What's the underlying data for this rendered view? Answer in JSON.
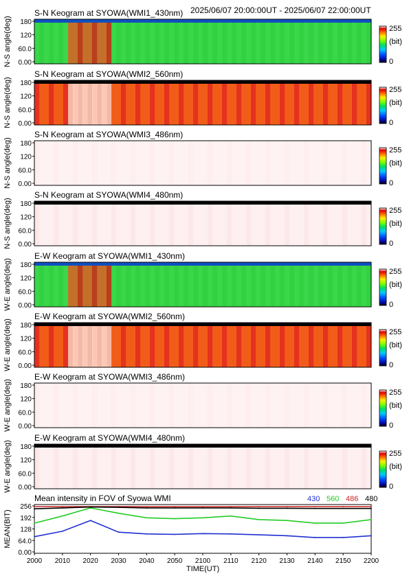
{
  "header": {
    "time_range": "2025/06/07 20:00:00UT - 2025/06/07 22:00:00UT"
  },
  "colorbar": {
    "max_label": "255",
    "unit_label": "(bit)",
    "min_label": "0"
  },
  "panels": [
    {
      "title": "S-N Keogram at SYOWA(WMI1_430nm)",
      "ylabel": "N-S angle(deg)",
      "profile": "p430"
    },
    {
      "title": "S-N Keogram at SYOWA(WMI2_560nm)",
      "ylabel": "N-S angle(deg)",
      "profile": "p560"
    },
    {
      "title": "S-N Keogram at SYOWA(WMI3_486nm)",
      "ylabel": "N-S angle(deg)",
      "profile": "p486"
    },
    {
      "title": "S-N Keogram at SYOWA(WMI4_480nm)",
      "ylabel": "N-S angle(deg)",
      "profile": "p480"
    },
    {
      "title": "E-W Keogram at SYOWA(WMI1_430nm)",
      "ylabel": "W-E angle(deg)",
      "profile": "p430"
    },
    {
      "title": "E-W Keogram at SYOWA(WMI2_560nm)",
      "ylabel": "W-E angle(deg)",
      "profile": "p560"
    },
    {
      "title": "E-W Keogram at SYOWA(WMI3_486nm)",
      "ylabel": "W-E angle(deg)",
      "profile": "p486"
    },
    {
      "title": "E-W Keogram at SYOWA(WMI4_480nm)",
      "ylabel": "W-E angle(deg)",
      "profile": "p480"
    }
  ],
  "keogram_yticks": [
    "180",
    "120",
    "60.0",
    "0.00"
  ],
  "line_panel": {
    "title": "Mean intensity in FOV of Syowa WMI",
    "ylabel": "MEAN(BIT)",
    "xlabel": "TIME(UT)",
    "yticks": [
      "256",
      "192",
      "128",
      "64.0",
      "0.00"
    ],
    "legend": [
      {
        "label": "430",
        "color": "#1f2fd0"
      },
      {
        "label": "560",
        "color": "#22cc22"
      },
      {
        "label": "486",
        "color": "#cc2222"
      },
      {
        "label": "480",
        "color": "#000000"
      }
    ]
  },
  "chart_data": {
    "type": "line",
    "title": "Mean intensity in FOV of Syowa WMI",
    "xlabel": "TIME(UT)",
    "ylabel": "MEAN(BIT)",
    "x": [
      "2000",
      "2010",
      "2020",
      "2030",
      "2040",
      "2050",
      "2100",
      "2110",
      "2120",
      "2130",
      "2140",
      "2150",
      "2200"
    ],
    "x_minutes": [
      0,
      10,
      20,
      30,
      40,
      50,
      60,
      70,
      80,
      90,
      100,
      110,
      120
    ],
    "ylim": [
      0,
      256
    ],
    "series": [
      {
        "name": "430",
        "color": "#1f2fd0",
        "values": [
          85,
          115,
          175,
          110,
          100,
          98,
          102,
          100,
          95,
          90,
          80,
          80,
          90
        ]
      },
      {
        "name": "560",
        "color": "#22cc22",
        "values": [
          160,
          200,
          245,
          215,
          190,
          185,
          190,
          200,
          180,
          175,
          160,
          160,
          180
        ]
      },
      {
        "name": "486",
        "color": "#cc2222",
        "values": [
          252,
          252,
          252,
          252,
          252,
          252,
          252,
          252,
          252,
          252,
          252,
          252,
          252
        ]
      },
      {
        "name": "480",
        "color": "#000000",
        "values": [
          240,
          245,
          250,
          248,
          245,
          245,
          245,
          245,
          243,
          243,
          242,
          242,
          242
        ]
      }
    ]
  }
}
